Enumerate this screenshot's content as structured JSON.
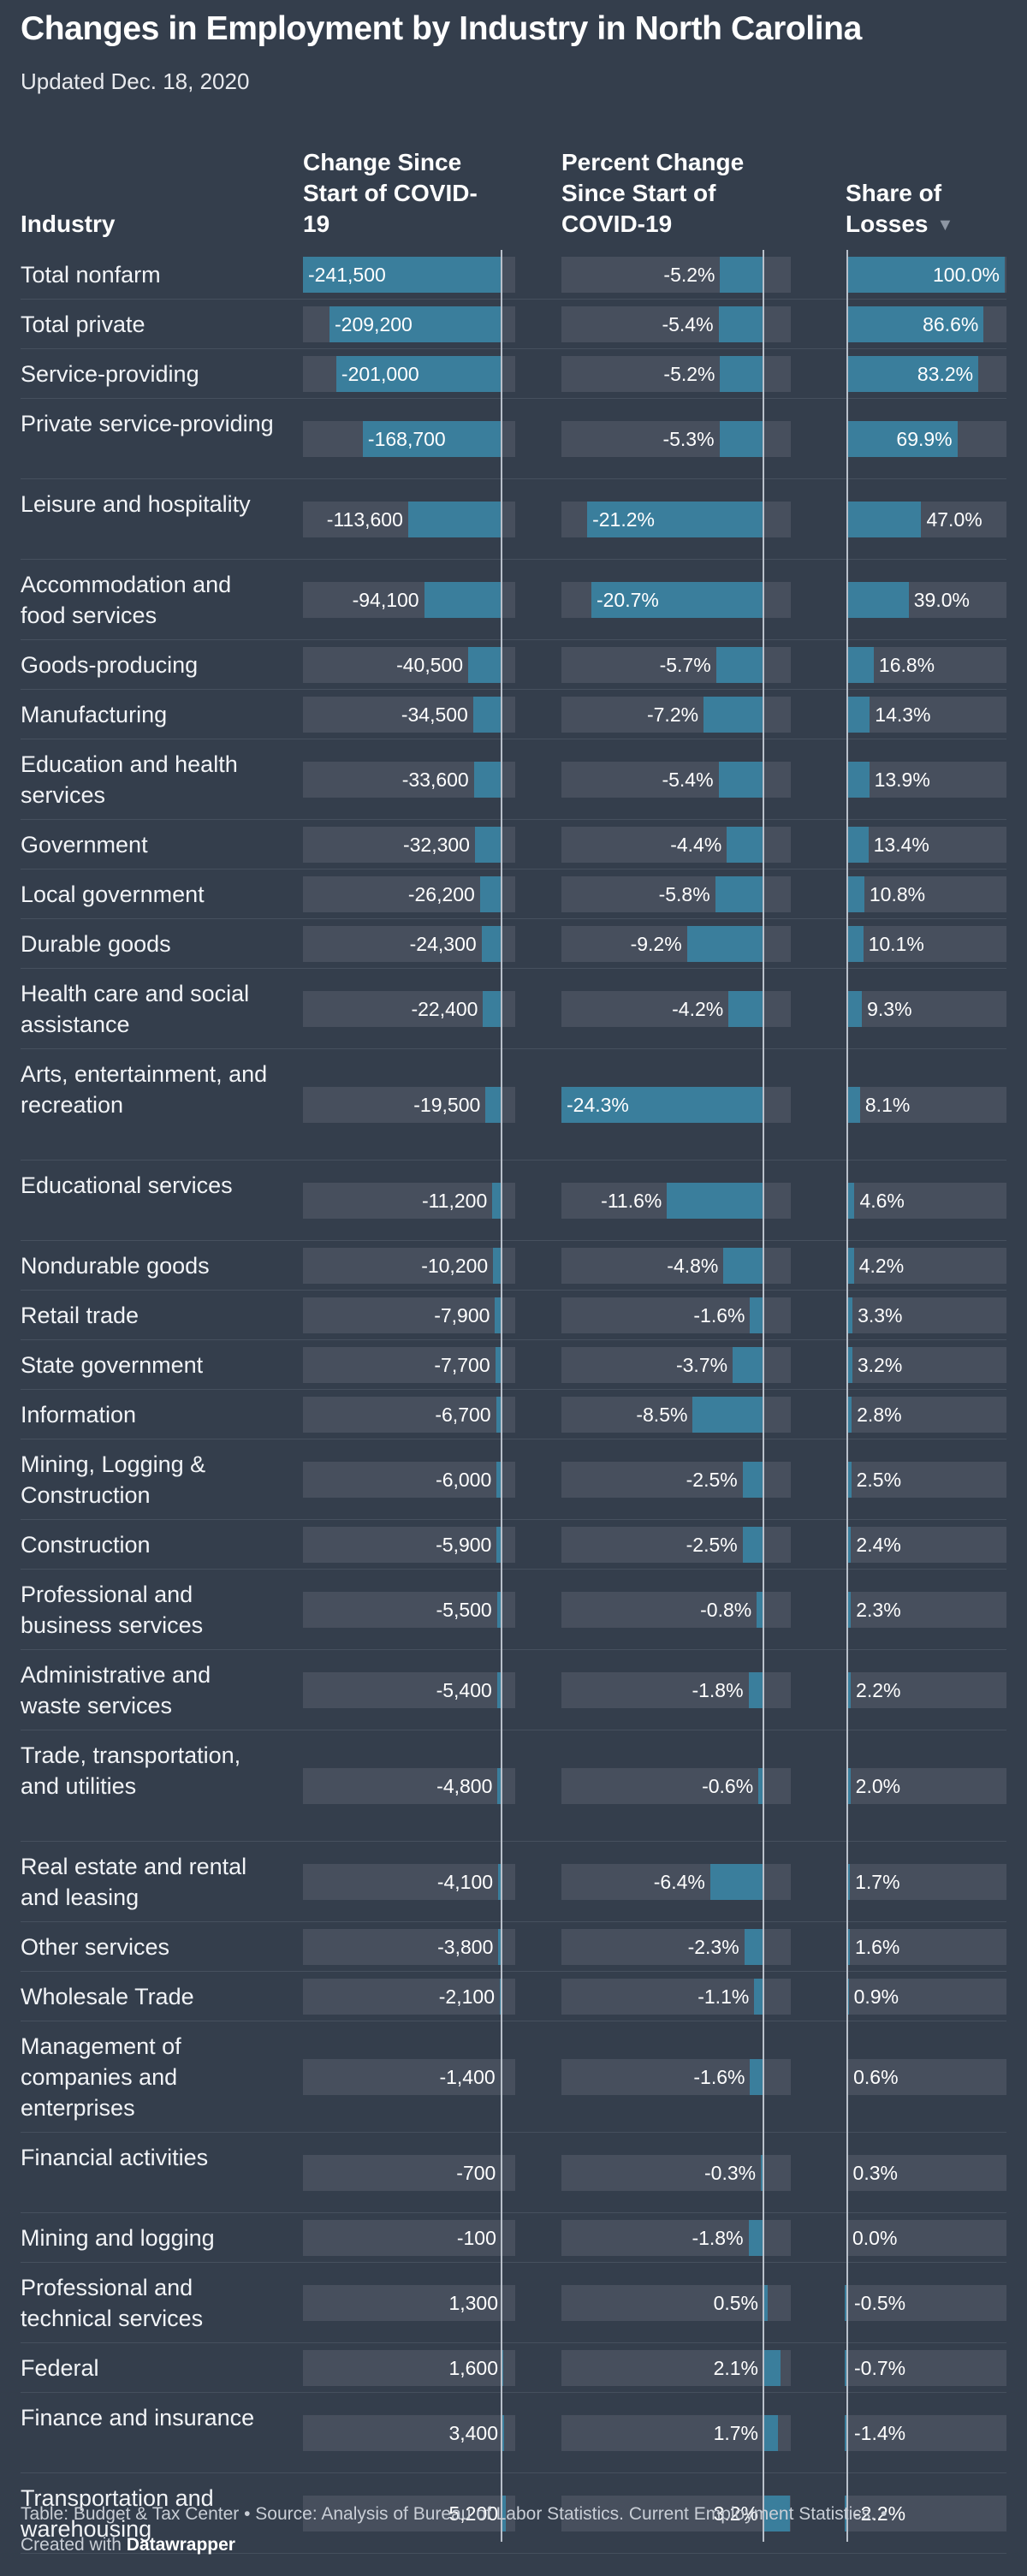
{
  "title": "Changes in Employment by Industry in North Carolina",
  "subtitle": "Updated Dec. 18, 2020",
  "colors": {
    "background": "#343e4c",
    "bar": "#3a7e9c",
    "track": "#474f5d"
  },
  "footer": {
    "text": "Table: Budget & Tax Center • Source: Analysis of Bureau of Labor Statistics. Current Employment Statistics. •",
    "created_prefix": "Created with",
    "created_brand": "Datawrapper"
  },
  "chart_data": {
    "type": "table",
    "columns": [
      "Industry",
      "Change Since Start of COVID-19",
      "Percent Change Since Start of COVID-19",
      "Share of Losses"
    ],
    "sort_indicator": "▼",
    "rows": [
      {
        "industry": "Total nonfarm",
        "change": -241500,
        "change_label": "-241,500",
        "pct": -5.2,
        "pct_label": "-5.2%",
        "share": 100.0,
        "share_label": "100.0%"
      },
      {
        "industry": "Total private",
        "change": -209200,
        "change_label": "-209,200",
        "pct": -5.4,
        "pct_label": "-5.4%",
        "share": 86.6,
        "share_label": "86.6%"
      },
      {
        "industry": "Service-providing",
        "change": -201000,
        "change_label": "-201,000",
        "pct": -5.2,
        "pct_label": "-5.2%",
        "share": 83.2,
        "share_label": "83.2%"
      },
      {
        "industry": "Private service-providing",
        "change": -168700,
        "change_label": "-168,700",
        "pct": -5.3,
        "pct_label": "-5.3%",
        "share": 69.9,
        "share_label": "69.9%"
      },
      {
        "industry": "Leisure and hospitality",
        "change": -113600,
        "change_label": "-113,600",
        "pct": -21.2,
        "pct_label": "-21.2%",
        "share": 47.0,
        "share_label": "47.0%"
      },
      {
        "industry": "Accommodation and food services",
        "change": -94100,
        "change_label": "-94,100",
        "pct": -20.7,
        "pct_label": "-20.7%",
        "share": 39.0,
        "share_label": "39.0%"
      },
      {
        "industry": "Goods-producing",
        "change": -40500,
        "change_label": "-40,500",
        "pct": -5.7,
        "pct_label": "-5.7%",
        "share": 16.8,
        "share_label": "16.8%"
      },
      {
        "industry": "Manufacturing",
        "change": -34500,
        "change_label": "-34,500",
        "pct": -7.2,
        "pct_label": "-7.2%",
        "share": 14.3,
        "share_label": "14.3%"
      },
      {
        "industry": "Education and health services",
        "change": -33600,
        "change_label": "-33,600",
        "pct": -5.4,
        "pct_label": "-5.4%",
        "share": 13.9,
        "share_label": "13.9%"
      },
      {
        "industry": "Government",
        "change": -32300,
        "change_label": "-32,300",
        "pct": -4.4,
        "pct_label": "-4.4%",
        "share": 13.4,
        "share_label": "13.4%"
      },
      {
        "industry": "Local government",
        "change": -26200,
        "change_label": "-26,200",
        "pct": -5.8,
        "pct_label": "-5.8%",
        "share": 10.8,
        "share_label": "10.8%"
      },
      {
        "industry": "Durable goods",
        "change": -24300,
        "change_label": "-24,300",
        "pct": -9.2,
        "pct_label": "-9.2%",
        "share": 10.1,
        "share_label": "10.1%"
      },
      {
        "industry": "Health care and social assistance",
        "change": -22400,
        "change_label": "-22,400",
        "pct": -4.2,
        "pct_label": "-4.2%",
        "share": 9.3,
        "share_label": "9.3%"
      },
      {
        "industry": "Arts, entertainment, and recreation",
        "change": -19500,
        "change_label": "-19,500",
        "pct": -24.3,
        "pct_label": "-24.3%",
        "share": 8.1,
        "share_label": "8.1%"
      },
      {
        "industry": "Educational services",
        "change": -11200,
        "change_label": "-11,200",
        "pct": -11.6,
        "pct_label": "-11.6%",
        "share": 4.6,
        "share_label": "4.6%"
      },
      {
        "industry": "Nondurable goods",
        "change": -10200,
        "change_label": "-10,200",
        "pct": -4.8,
        "pct_label": "-4.8%",
        "share": 4.2,
        "share_label": "4.2%"
      },
      {
        "industry": "Retail trade",
        "change": -7900,
        "change_label": "-7,900",
        "pct": -1.6,
        "pct_label": "-1.6%",
        "share": 3.3,
        "share_label": "3.3%"
      },
      {
        "industry": "State government",
        "change": -7700,
        "change_label": "-7,700",
        "pct": -3.7,
        "pct_label": "-3.7%",
        "share": 3.2,
        "share_label": "3.2%"
      },
      {
        "industry": "Information",
        "change": -6700,
        "change_label": "-6,700",
        "pct": -8.5,
        "pct_label": "-8.5%",
        "share": 2.8,
        "share_label": "2.8%"
      },
      {
        "industry": "Mining, Logging & Construction",
        "change": -6000,
        "change_label": "-6,000",
        "pct": -2.5,
        "pct_label": "-2.5%",
        "share": 2.5,
        "share_label": "2.5%"
      },
      {
        "industry": "Construction",
        "change": -5900,
        "change_label": "-5,900",
        "pct": -2.5,
        "pct_label": "-2.5%",
        "share": 2.4,
        "share_label": "2.4%"
      },
      {
        "industry": "Professional and business services",
        "change": -5500,
        "change_label": "-5,500",
        "pct": -0.8,
        "pct_label": "-0.8%",
        "share": 2.3,
        "share_label": "2.3%"
      },
      {
        "industry": "Administrative and waste services",
        "change": -5400,
        "change_label": "-5,400",
        "pct": -1.8,
        "pct_label": "-1.8%",
        "share": 2.2,
        "share_label": "2.2%"
      },
      {
        "industry": "Trade, transportation, and utilities",
        "change": -4800,
        "change_label": "-4,800",
        "pct": -0.6,
        "pct_label": "-0.6%",
        "share": 2.0,
        "share_label": "2.0%"
      },
      {
        "industry": "Real estate and rental and leasing",
        "change": -4100,
        "change_label": "-4,100",
        "pct": -6.4,
        "pct_label": "-6.4%",
        "share": 1.7,
        "share_label": "1.7%"
      },
      {
        "industry": "Other services",
        "change": -3800,
        "change_label": "-3,800",
        "pct": -2.3,
        "pct_label": "-2.3%",
        "share": 1.6,
        "share_label": "1.6%"
      },
      {
        "industry": "Wholesale Trade",
        "change": -2100,
        "change_label": "-2,100",
        "pct": -1.1,
        "pct_label": "-1.1%",
        "share": 0.9,
        "share_label": "0.9%"
      },
      {
        "industry": "Management of companies and enterprises",
        "change": -1400,
        "change_label": "-1,400",
        "pct": -1.6,
        "pct_label": "-1.6%",
        "share": 0.6,
        "share_label": "0.6%"
      },
      {
        "industry": "Financial activities",
        "change": -700,
        "change_label": "-700",
        "pct": -0.3,
        "pct_label": "-0.3%",
        "share": 0.3,
        "share_label": "0.3%"
      },
      {
        "industry": "Mining and logging",
        "change": -100,
        "change_label": "-100",
        "pct": -1.8,
        "pct_label": "-1.8%",
        "share": 0.0,
        "share_label": "0.0%"
      },
      {
        "industry": "Professional and technical services",
        "change": 1300,
        "change_label": "1,300",
        "pct": 0.5,
        "pct_label": "0.5%",
        "share": -0.5,
        "share_label": "-0.5%"
      },
      {
        "industry": "Federal",
        "change": 1600,
        "change_label": "1,600",
        "pct": 2.1,
        "pct_label": "2.1%",
        "share": -0.7,
        "share_label": "-0.7%"
      },
      {
        "industry": "Finance and insurance",
        "change": 3400,
        "change_label": "3,400",
        "pct": 1.7,
        "pct_label": "1.7%",
        "share": -1.4,
        "share_label": "-1.4%"
      },
      {
        "industry": "Transportation and warehousing",
        "change": 5200,
        "change_label": "5,200",
        "pct": 3.2,
        "pct_label": "3.2%",
        "share": -2.2,
        "share_label": "-2.2%"
      }
    ]
  }
}
